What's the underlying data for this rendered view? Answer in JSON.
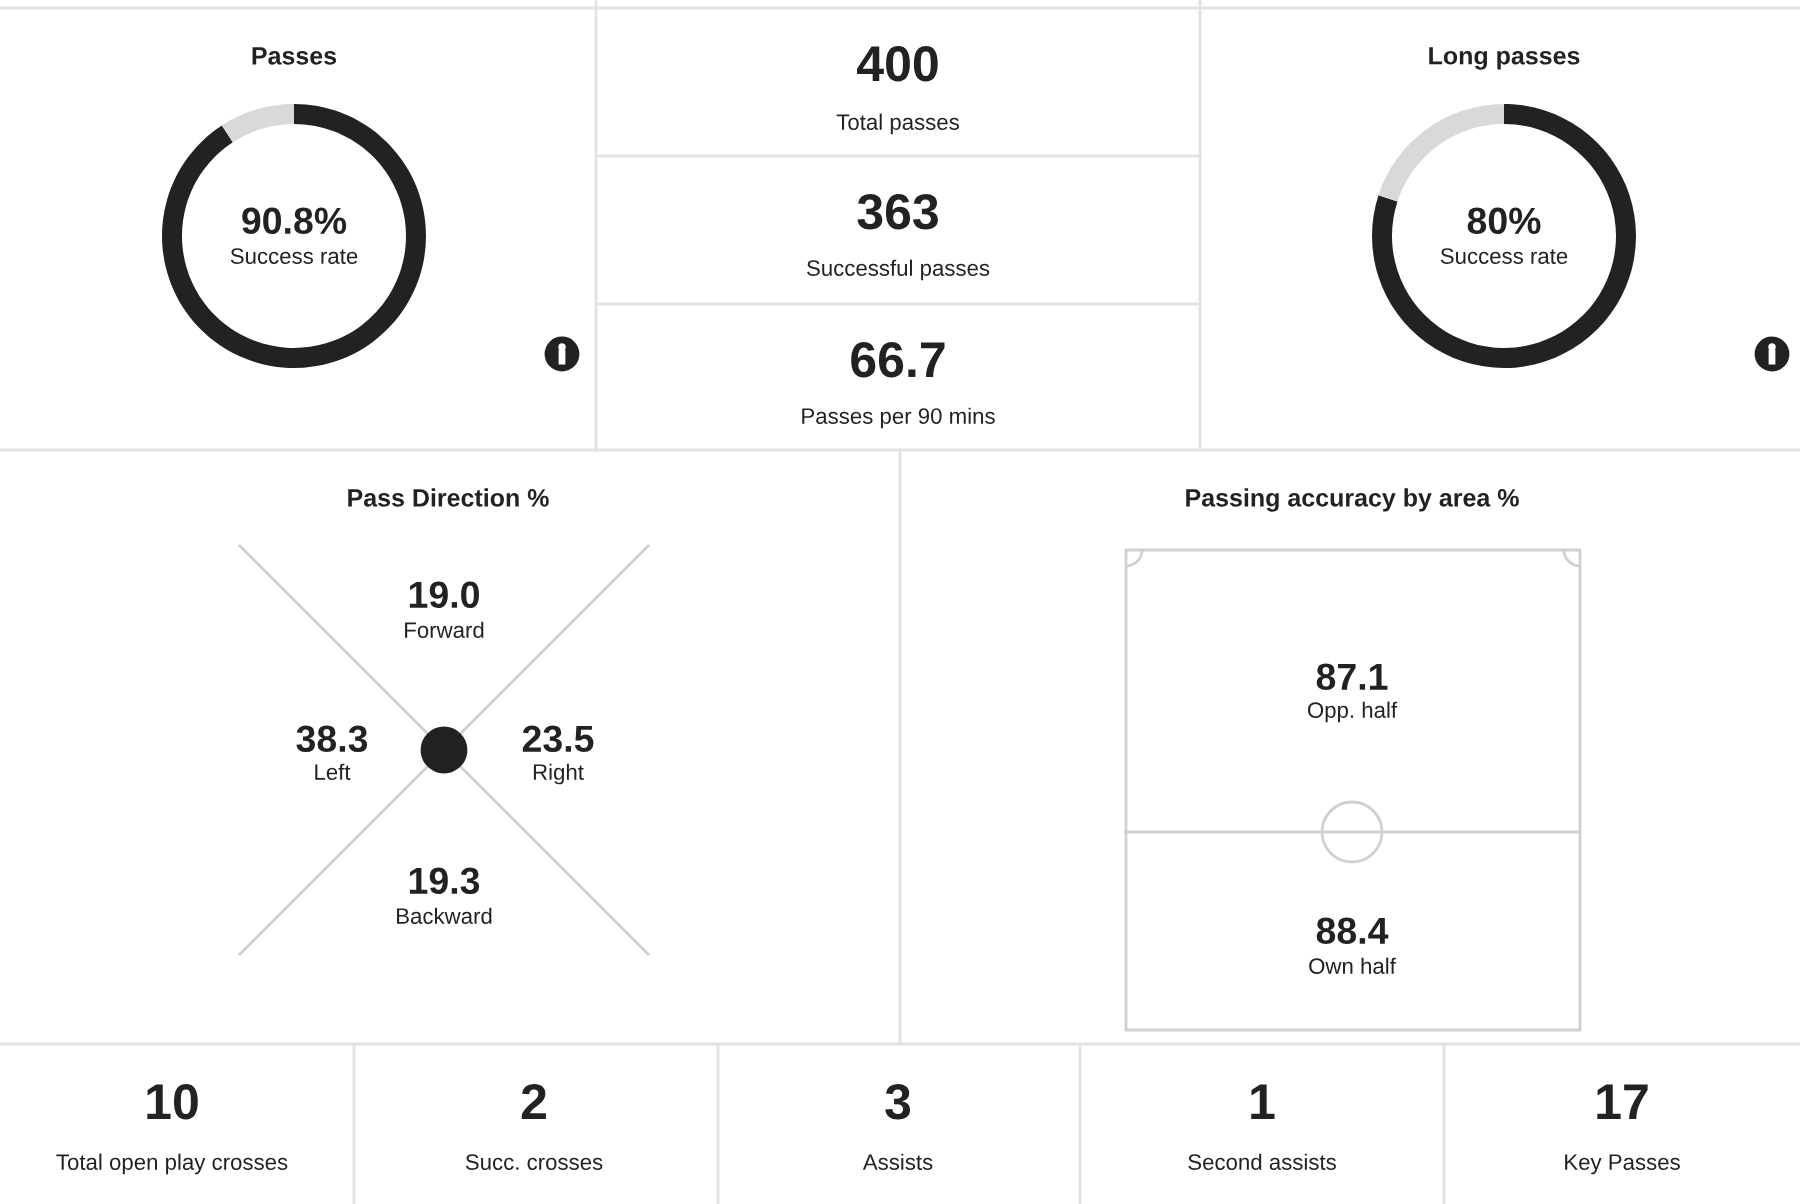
{
  "chart_data": [
    {
      "type": "donut",
      "title": "Passes",
      "categories": [
        null,
        null
      ],
      "values": [
        90.8,
        9.2
      ],
      "colors": [
        "#222222",
        "#d9d9d9"
      ],
      "annotations": [
        "90.8%",
        "Success rate"
      ]
    },
    {
      "type": "other",
      "annotations": [
        "400",
        "Total passes",
        "363",
        "Successful passes",
        "66.7",
        "Passes per 90 mins"
      ]
    },
    {
      "type": "donut",
      "title": "Long passes",
      "categories": [
        null,
        null
      ],
      "values": [
        80,
        20
      ],
      "colors": [
        "#222222",
        "#d9d9d9"
      ],
      "annotations": [
        "80%",
        "Success rate"
      ]
    },
    {
      "type": "other",
      "title": "Pass Direction %",
      "annotations": [
        "19.0",
        "Forward",
        "38.3",
        "Left",
        "23.5",
        "Right",
        "19.3",
        "Backward"
      ]
    },
    {
      "type": "other",
      "title": "Passing accuracy by area %",
      "annotations": [
        "87.1",
        "Opp. half",
        "88.4",
        "Own half"
      ]
    },
    {
      "type": "other",
      "annotations": [
        "10",
        "Total open play crosses",
        "2",
        "Succ. crosses",
        "3",
        "Assists",
        "1",
        "Second assists",
        "17",
        "Key Passes"
      ]
    }
  ]
}
